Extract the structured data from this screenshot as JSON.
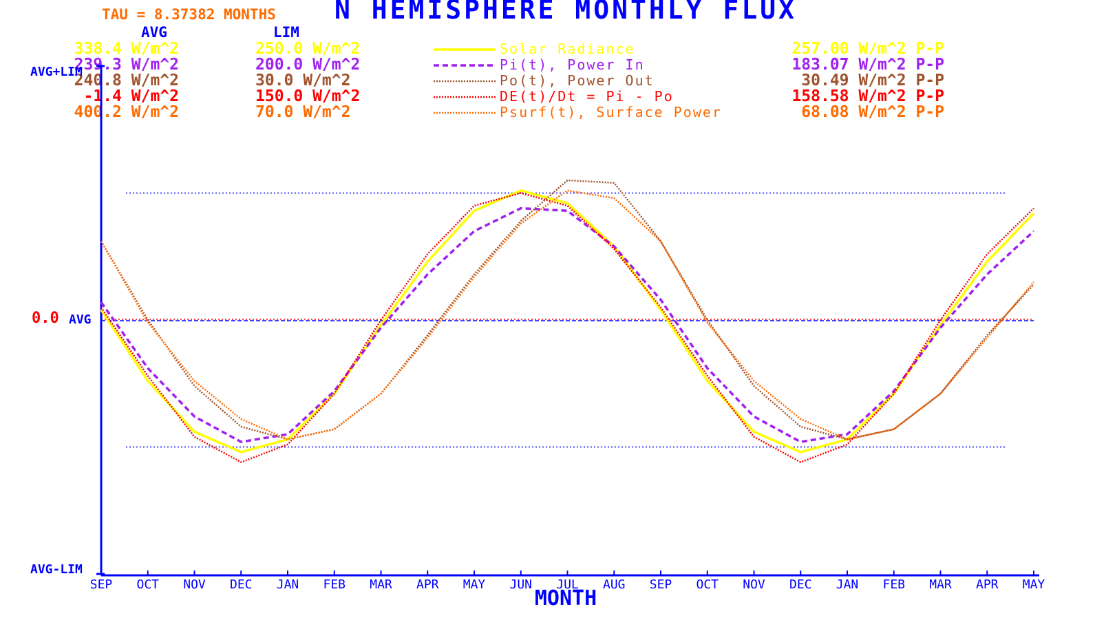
{
  "chart_data": {
    "type": "line",
    "title": "N HEMISPHERE MONTHLY FLUX",
    "tau_label": "TAU = 8.37382 MONTHS",
    "xlabel": "MONTH",
    "ylabel_top": "AVG+LIM",
    "ylabel_bottom": "AVG-LIM",
    "ylabel_zero_value": "0.0",
    "ylabel_zero_text": "AVG",
    "col_avg_header": "AVG",
    "col_lim_header": "LIM",
    "ylim": [
      -1,
      1
    ],
    "reference_lines": [
      0.5,
      0,
      -0.5
    ],
    "grid": false,
    "legend_position": "top",
    "categories": [
      "SEP",
      "OCT",
      "NOV",
      "DEC",
      "JAN",
      "FEB",
      "MAR",
      "APR",
      "MAY",
      "JUN",
      "JUL",
      "AUG",
      "SEP",
      "OCT",
      "NOV",
      "DEC",
      "JAN",
      "FEB",
      "MAR",
      "APR",
      "MAY"
    ],
    "series": [
      {
        "name": "Solar Radiance",
        "avg": "338.4 W/m^2",
        "lim": "250.0 W/m^2",
        "pp": "257.00 W/m^2 P-P",
        "color": "#ffff00",
        "dash": "solid",
        "values": [
          0.04,
          -0.24,
          -0.44,
          -0.52,
          -0.47,
          -0.29,
          -0.02,
          0.23,
          0.43,
          0.51,
          0.46,
          0.29,
          0.04,
          -0.24,
          -0.44,
          -0.52,
          -0.47,
          -0.29,
          -0.02,
          0.23,
          0.42
        ]
      },
      {
        "name": "Pi(t), Power In",
        "avg": "239.3 W/m^2",
        "lim": "200.0 W/m^2",
        "pp": "183.07 W/m^2 P-P",
        "color": "#a020f0",
        "dash": "dashed",
        "values": [
          0.07,
          -0.19,
          -0.38,
          -0.48,
          -0.45,
          -0.28,
          -0.03,
          0.18,
          0.35,
          0.44,
          0.43,
          0.29,
          0.08,
          -0.19,
          -0.38,
          -0.48,
          -0.45,
          -0.28,
          -0.03,
          0.18,
          0.35
        ]
      },
      {
        "name": "Po(t), Power Out",
        "avg": "240.8 W/m^2",
        "lim": "30.0 W/m^2",
        "pp": "30.49 W/m^2 P-P",
        "color": "#a0522d",
        "dash": "dotted",
        "values": [
          0.31,
          0.0,
          -0.26,
          -0.42,
          -0.47,
          -0.43,
          -0.29,
          -0.06,
          0.18,
          0.39,
          0.55,
          0.54,
          0.31,
          0.0,
          -0.26,
          -0.42,
          -0.47,
          -0.43,
          -0.29,
          -0.06,
          0.14
        ]
      },
      {
        "name": "DE(t)/Dt = Pi - Po",
        "avg": "-1.4 W/m^2",
        "lim": "150.0 W/m^2",
        "pp": "158.58 W/m^2 P-P",
        "color": "#ff0000",
        "dash": "dotted",
        "values": [
          0.05,
          -0.22,
          -0.46,
          -0.56,
          -0.49,
          -0.29,
          0.0,
          0.26,
          0.45,
          0.5,
          0.45,
          0.28,
          0.05,
          -0.22,
          -0.46,
          -0.56,
          -0.49,
          -0.29,
          0.0,
          0.26,
          0.44
        ]
      },
      {
        "name": "Psurf(t), Surface Power",
        "avg": "400.2 W/m^2",
        "lim": "70.0 W/m^2",
        "pp": "68.08 W/m^2 P-P",
        "color": "#ff6a00",
        "dash": "dotted",
        "values": [
          0.31,
          -0.01,
          -0.24,
          -0.39,
          -0.47,
          -0.43,
          -0.29,
          -0.07,
          0.17,
          0.38,
          0.51,
          0.48,
          0.31,
          -0.01,
          -0.24,
          -0.39,
          -0.47,
          -0.43,
          -0.29,
          -0.07,
          0.15
        ]
      }
    ]
  }
}
